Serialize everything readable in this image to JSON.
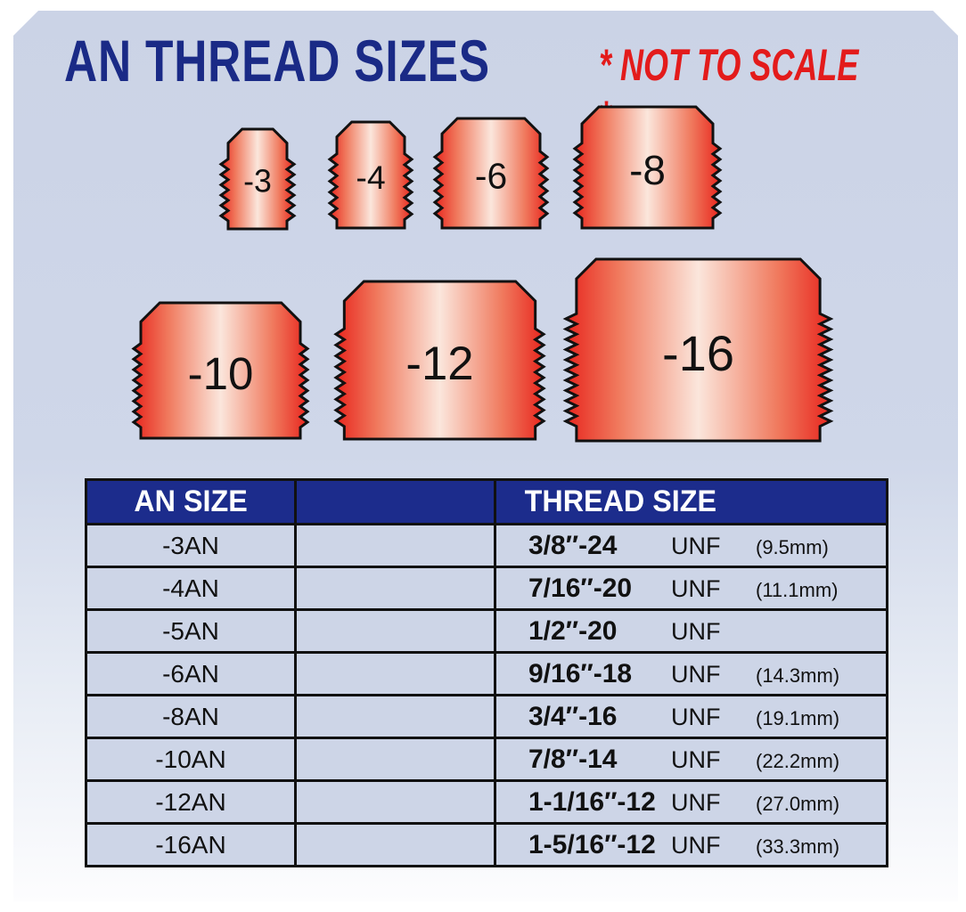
{
  "title": "AN THREAD SIZES",
  "note": "* NOT TO SCALE *",
  "fittings": [
    "-3",
    "-4",
    "-6",
    "-8",
    "-10",
    "-12",
    "-16"
  ],
  "colors": {
    "title": "#1a2a86",
    "note": "#e31b1b",
    "header": "#1c2c8c",
    "fitting_edge": "#e8261e",
    "fitting_center": "#fbe6dc"
  },
  "table": {
    "headers": [
      "AN SIZE",
      "",
      "THREAD SIZE"
    ],
    "rows": [
      {
        "an": "-3AN",
        "thread": "3/8″-24",
        "unit": "UNF",
        "mm": "(9.5mm)"
      },
      {
        "an": "-4AN",
        "thread": "7/16″-20",
        "unit": "UNF",
        "mm": "(11.1mm)"
      },
      {
        "an": "-5AN",
        "thread": "1/2″-20",
        "unit": "UNF",
        "mm": ""
      },
      {
        "an": "-6AN",
        "thread": "9/16″-18",
        "unit": "UNF",
        "mm": "(14.3mm)"
      },
      {
        "an": "-8AN",
        "thread": "3/4″-16",
        "unit": "UNF",
        "mm": "(19.1mm)"
      },
      {
        "an": "-10AN",
        "thread": "7/8″-14",
        "unit": "UNF",
        "mm": "(22.2mm)"
      },
      {
        "an": "-12AN",
        "thread": "1-1/16″-12",
        "unit": "UNF",
        "mm": "(27.0mm)"
      },
      {
        "an": "-16AN",
        "thread": "1-5/16″-12",
        "unit": "UNF",
        "mm": "(33.3mm)"
      }
    ]
  }
}
